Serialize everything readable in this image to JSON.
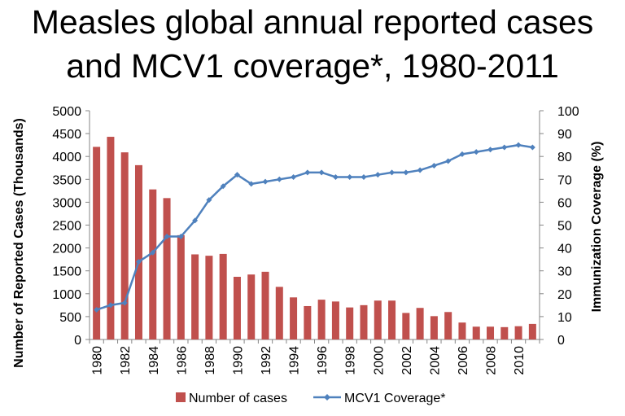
{
  "chart_data": {
    "type": "bar",
    "title_line1": "Measles global annual reported cases",
    "title_line2": "and MCV1 coverage*, 1980-2011",
    "ylabel_left": "Number of Reported Cases  (Thousands)",
    "ylabel_right": "Immunization Coverage (%)",
    "ylim_left": [
      0,
      5000
    ],
    "yticks_left": [
      "0",
      "500",
      "1000",
      "1500",
      "2000",
      "2500",
      "3000",
      "3500",
      "4000",
      "4500",
      "5000"
    ],
    "ylim_right": [
      0,
      100
    ],
    "yticks_right": [
      "0",
      "10",
      "20",
      "30",
      "40",
      "50",
      "60",
      "70",
      "80",
      "90",
      "100"
    ],
    "xticks": [
      "1980",
      "1982",
      "1984",
      "1986",
      "1988",
      "1990",
      "1992",
      "1994",
      "1996",
      "1998",
      "2000",
      "2002",
      "2004",
      "2006",
      "2008",
      "2010"
    ],
    "categories": [
      1980,
      1981,
      1982,
      1983,
      1984,
      1985,
      1986,
      1987,
      1988,
      1989,
      1990,
      1991,
      1992,
      1993,
      1994,
      1995,
      1996,
      1997,
      1998,
      1999,
      2000,
      2001,
      2002,
      2003,
      2004,
      2005,
      2006,
      2007,
      2008,
      2009,
      2010,
      2011
    ],
    "series": [
      {
        "name": "Number of cases",
        "kind": "bar",
        "axis": "left",
        "color": "#c0504d",
        "values": [
          4210,
          4430,
          4090,
          3810,
          3280,
          3090,
          2280,
          1860,
          1830,
          1870,
          1370,
          1420,
          1480,
          1150,
          920,
          730,
          870,
          830,
          700,
          750,
          850,
          850,
          580,
          690,
          510,
          600,
          370,
          280,
          280,
          270,
          290,
          340
        ]
      },
      {
        "name": "MCV1 Coverage*",
        "kind": "line",
        "axis": "right",
        "color": "#4f81bd",
        "values": [
          13,
          15,
          16,
          34,
          38,
          45,
          45,
          52,
          61,
          67,
          72,
          68,
          69,
          70,
          71,
          73,
          73,
          71,
          71,
          71,
          72,
          73,
          73,
          74,
          76,
          78,
          81,
          82,
          83,
          84,
          85,
          84
        ]
      }
    ],
    "legend_position": "bottom",
    "grid": false
  }
}
